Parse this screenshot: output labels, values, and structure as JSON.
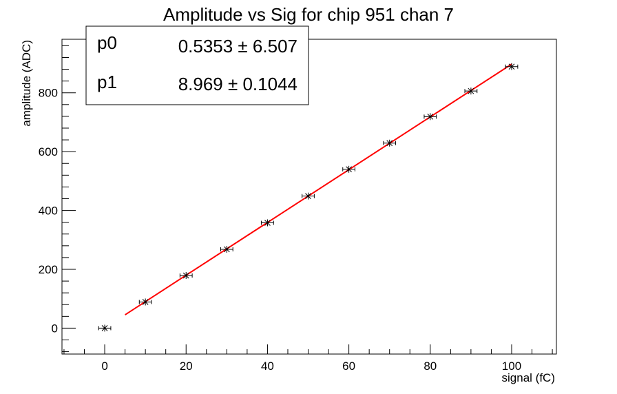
{
  "chart_data": {
    "type": "scatter",
    "title": "Amplitude vs Sig for chip 951 chan 7",
    "xlabel": "signal (fC)",
    "ylabel": "amplitude (ADC)",
    "xlim": [
      -10.5,
      111
    ],
    "ylim": [
      -88,
      982
    ],
    "x_ticks": [
      0,
      20,
      40,
      60,
      80,
      100
    ],
    "y_ticks": [
      0,
      200,
      400,
      600,
      800
    ],
    "grid": false,
    "series": [
      {
        "x": [
          0,
          10,
          20,
          30,
          40,
          50,
          60,
          70,
          80,
          90,
          100
        ],
        "y": [
          0,
          89,
          179,
          268,
          358,
          449,
          540,
          629,
          719,
          806,
          889
        ],
        "x_err": 1.5,
        "color": "#000000"
      }
    ],
    "fit": {
      "x_range": [
        5,
        100
      ],
      "intercept": 0.5353,
      "slope": 8.969,
      "color": "#ff0000"
    },
    "stats_box": {
      "rows": [
        {
          "name": "p0",
          "value": "0.5353 ± 6.507"
        },
        {
          "name": "p1",
          "value": "8.969 ± 0.1044"
        }
      ]
    }
  }
}
